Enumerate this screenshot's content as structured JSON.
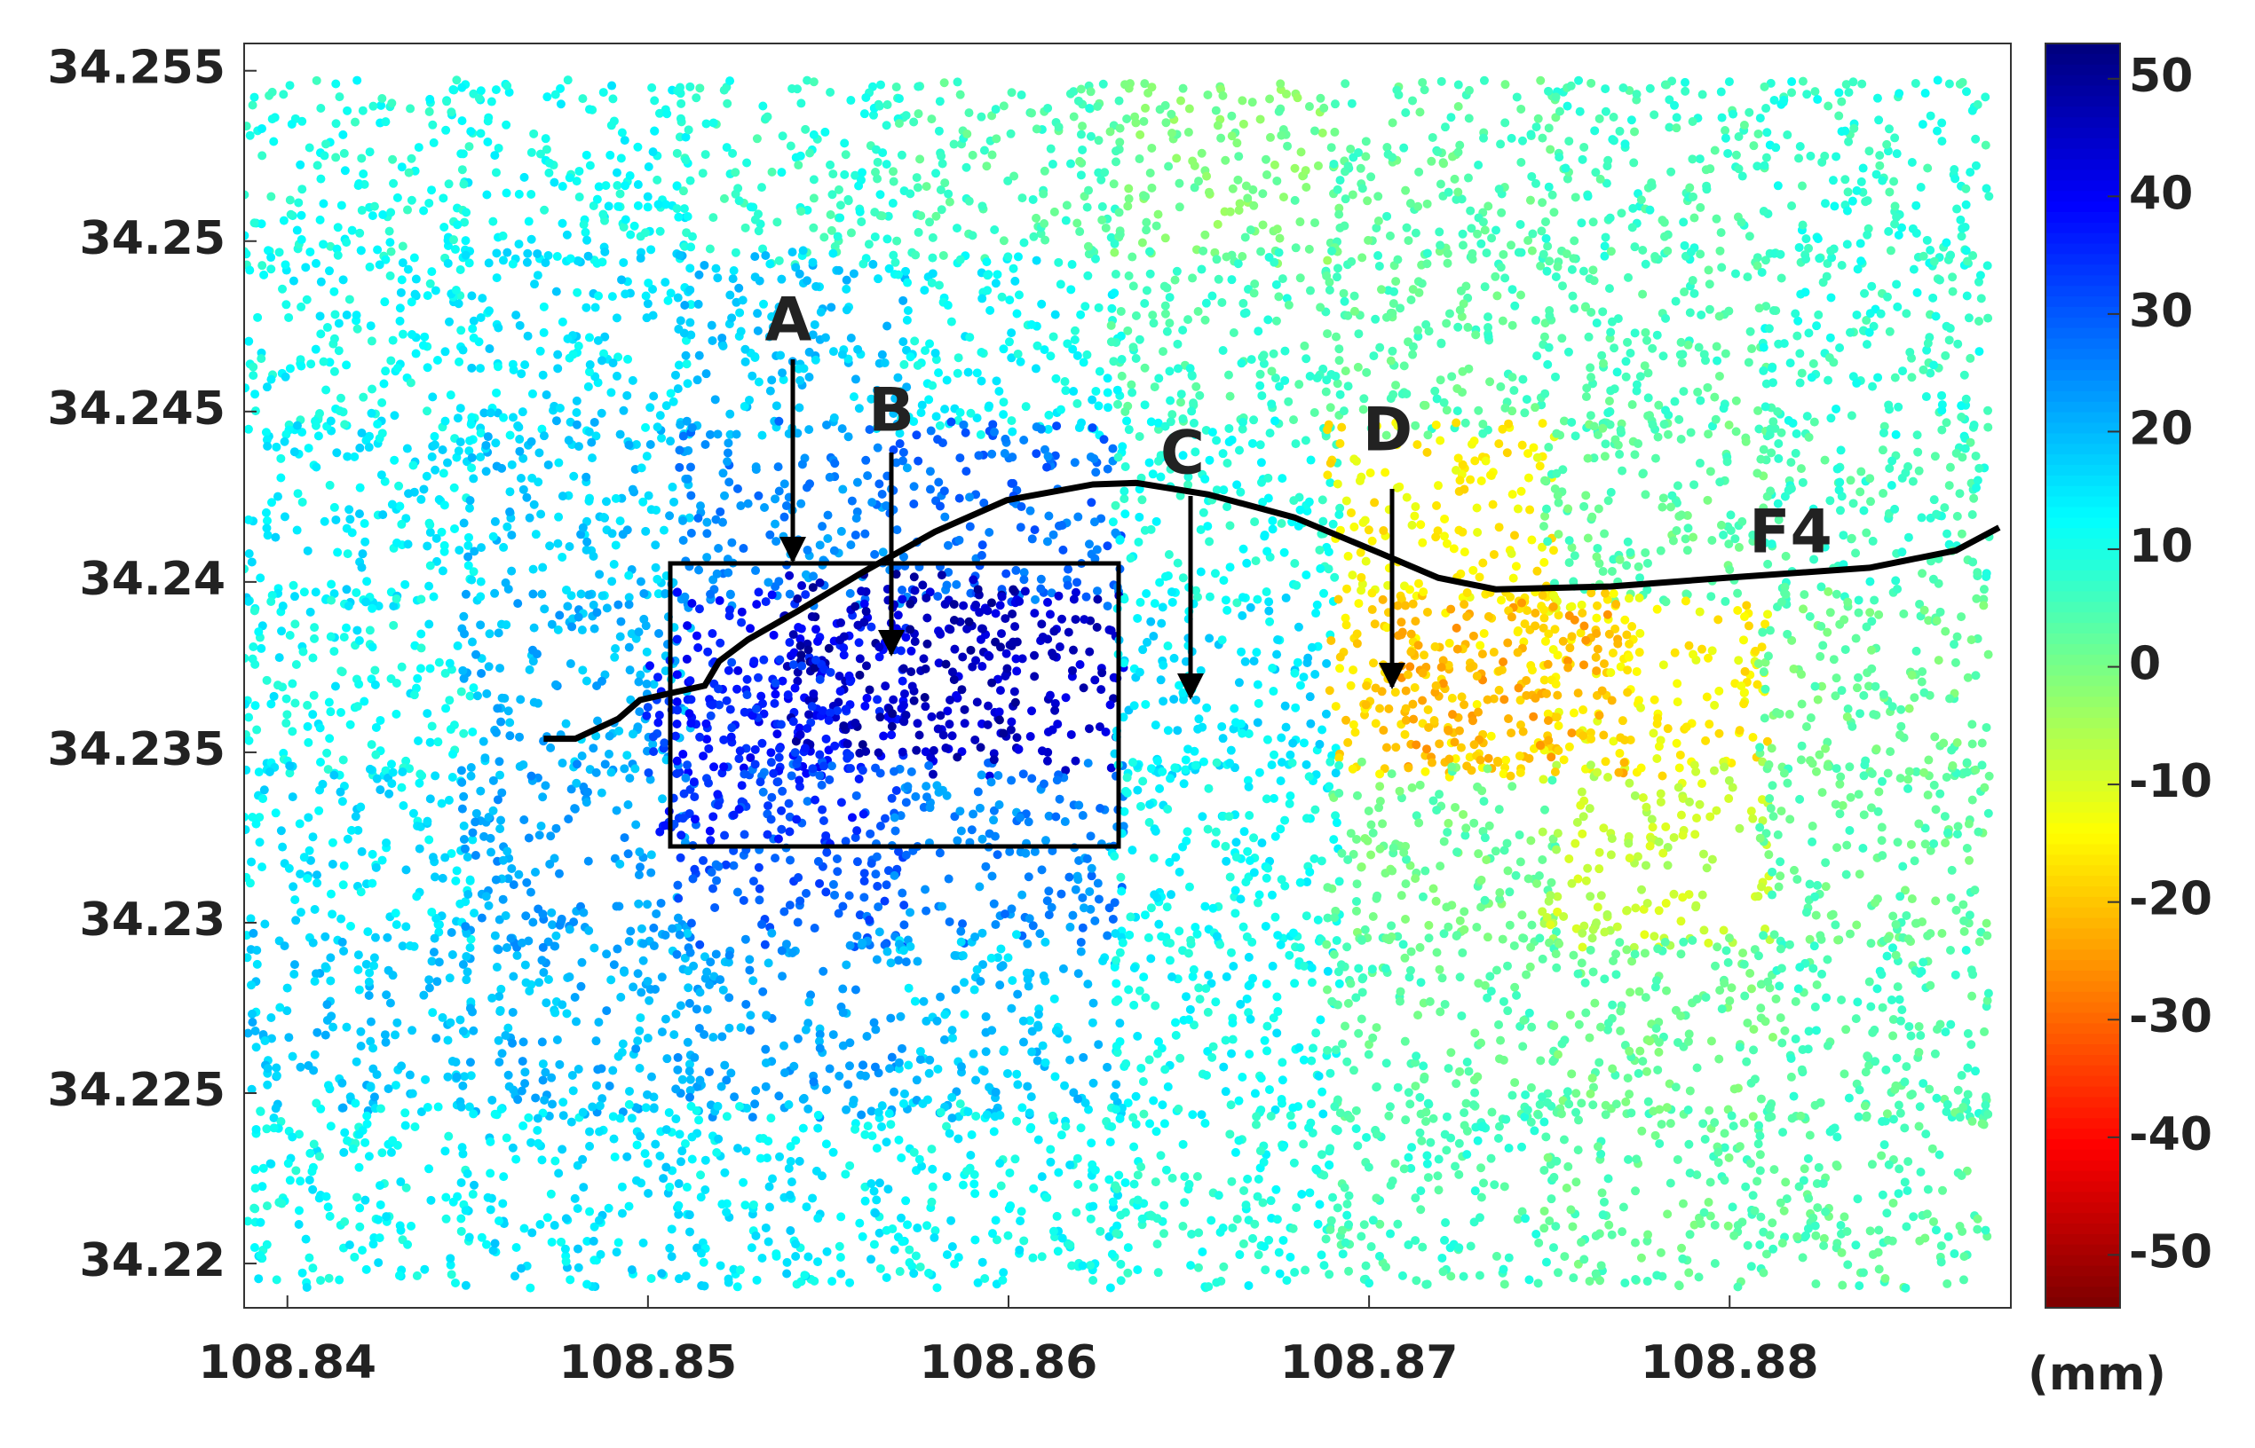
{
  "chart_data": {
    "type": "scatter",
    "x": [
      108.842,
      108.848,
      108.854,
      108.86,
      108.866,
      108.872,
      108.878,
      108.884,
      108.842,
      108.848,
      108.854,
      108.86,
      108.866,
      108.872,
      108.878,
      108.884,
      108.842,
      108.848,
      108.854,
      108.86,
      108.866,
      108.872,
      108.878,
      108.884,
      108.842,
      108.848,
      108.854,
      108.86,
      108.866,
      108.872,
      108.878,
      108.884,
      108.842,
      108.848,
      108.854,
      108.86,
      108.866,
      108.872,
      108.878,
      108.884,
      108.842,
      108.848,
      108.854,
      108.86,
      108.866,
      108.872,
      108.878,
      108.884,
      108.842,
      108.848,
      108.854,
      108.86,
      108.866,
      108.872,
      108.878,
      108.884,
      108.857,
      108.874,
      108.853
    ],
    "y": [
      34.252,
      34.252,
      34.252,
      34.252,
      34.252,
      34.252,
      34.252,
      34.252,
      34.247,
      34.247,
      34.247,
      34.247,
      34.247,
      34.247,
      34.247,
      34.247,
      34.242,
      34.242,
      34.242,
      34.242,
      34.242,
      34.242,
      34.242,
      34.242,
      34.237,
      34.237,
      34.237,
      34.237,
      34.237,
      34.237,
      34.237,
      34.237,
      34.232,
      34.232,
      34.232,
      34.232,
      34.232,
      34.232,
      34.232,
      34.232,
      34.227,
      34.227,
      34.227,
      34.227,
      34.227,
      34.227,
      34.227,
      34.227,
      34.222,
      34.222,
      34.222,
      34.222,
      34.222,
      34.222,
      34.222,
      34.222,
      34.2375,
      34.237,
      34.235
    ],
    "values": [
      10,
      12,
      8,
      5,
      0,
      4,
      6,
      8,
      12,
      15,
      18,
      12,
      6,
      4,
      5,
      8,
      14,
      18,
      25,
      28,
      10,
      -15,
      3,
      6,
      12,
      20,
      38,
      45,
      15,
      -18,
      -15,
      2,
      15,
      22,
      30,
      25,
      12,
      2,
      -8,
      3,
      18,
      20,
      22,
      18,
      12,
      4,
      2,
      5,
      12,
      15,
      14,
      12,
      10,
      6,
      3,
      4,
      48,
      -22,
      35
    ],
    "xlim": [
      108.8388,
      108.8878
    ],
    "ylim": [
      34.2187,
      34.2558
    ],
    "xticks": [
      108.84,
      108.85,
      108.86,
      108.87,
      108.88
    ],
    "yticks": [
      34.22,
      34.225,
      34.23,
      34.235,
      34.24,
      34.245,
      34.25,
      34.255
    ],
    "colorbar": {
      "lim": [
        -54.5,
        53
      ],
      "ticks": [
        -50,
        -40,
        -30,
        -20,
        -10,
        0,
        10,
        20,
        30,
        40,
        50
      ],
      "unit": "(mm)",
      "colormap": "jet"
    },
    "annotations": [
      "A",
      "B",
      "C",
      "D",
      "F4"
    ]
  }
}
